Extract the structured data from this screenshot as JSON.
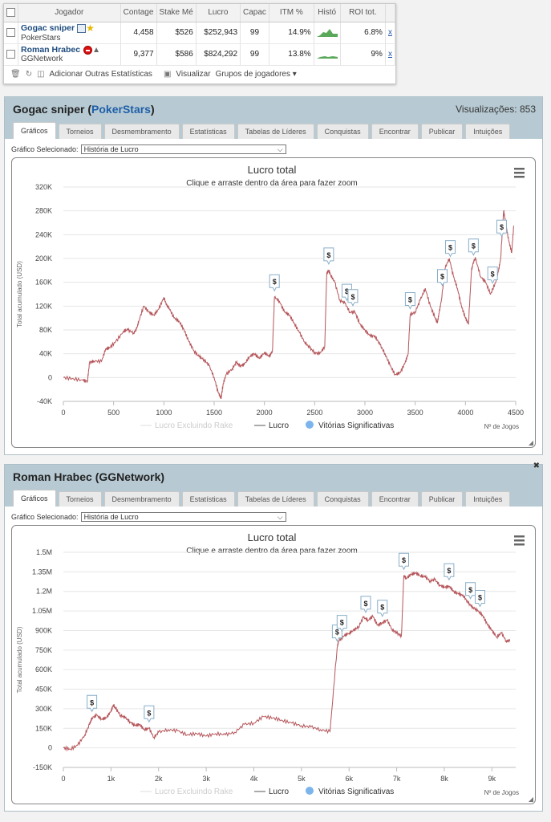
{
  "players_table": {
    "headers": [
      "Jogador",
      "Contage",
      "Stake Mé",
      "Lucro",
      "Capac",
      "ITM %",
      "Histó",
      "ROI tot."
    ],
    "rows": [
      {
        "name": "Gogac sniper",
        "network": "PokerStars",
        "count": "4,458",
        "stake": "$526",
        "profit": "$252,943",
        "cap": "99",
        "itm": "14.9%",
        "roi": "6.8%",
        "x": "x"
      },
      {
        "name": "Roman Hrabec",
        "network": "GGNetwork",
        "count": "9,377",
        "stake": "$586",
        "profit": "$824,292",
        "cap": "99",
        "itm": "13.8%",
        "roi": "9%",
        "x": "x"
      }
    ],
    "toolbar": {
      "add_stats": "Adicionar Outras Estatísticas",
      "view": "Visualizar",
      "groups": "Grupos de jogadores"
    }
  },
  "tabs": [
    "Gráficos",
    "Torneios",
    "Desmembramento",
    "Estatísticas",
    "Tabelas de Líderes",
    "Conquistas",
    "Encontrar",
    "Publicar",
    "Intuições"
  ],
  "selector": {
    "label": "Gráfico Selecionado:",
    "value": "História de Lucro"
  },
  "panels": [
    {
      "player": "Gogac sniper",
      "network": "PokerStars",
      "views_label": "Visualizações:",
      "views": "853"
    },
    {
      "player": "Roman Hrabec",
      "network": "GGNetwork"
    }
  ],
  "chart_common": {
    "title": "Lucro total",
    "subtitle": "Clique e arraste dentro da área para fazer zoom",
    "ylabel": "Total acumulado (USD)",
    "xlabel": "Nº de Jogos",
    "legend": [
      "Lucro Excluindo Rake",
      "Lucro",
      "Vitórias Significativas"
    ],
    "marker_symbol": "$"
  },
  "colors": {
    "profit_line": "#b5555a",
    "marker_dot": "#7cb5ec",
    "panel_bg": "#b7cad3",
    "link": "#1f5fa8"
  },
  "chart_data": [
    {
      "type": "line",
      "title": "Lucro total",
      "xlim": [
        0,
        4500
      ],
      "ylim": [
        -40000,
        320000
      ],
      "x_ticks": [
        0,
        500,
        1000,
        1500,
        2000,
        2500,
        3000,
        3500,
        4000,
        4500
      ],
      "x_tick_labels": [
        "0",
        "500",
        "1000",
        "1500",
        "2000",
        "2500",
        "3000",
        "3500",
        "4000",
        "4500"
      ],
      "y_ticks": [
        -40000,
        0,
        40000,
        80000,
        120000,
        160000,
        200000,
        240000,
        280000,
        320000
      ],
      "y_tick_labels": [
        "-40K",
        "0",
        "40K",
        "80K",
        "120K",
        "160K",
        "200K",
        "240K",
        "280K",
        "320K"
      ],
      "series": [
        {
          "name": "Lucro",
          "x": [
            0,
            100,
            200,
            240,
            260,
            300,
            380,
            420,
            460,
            520,
            600,
            640,
            700,
            730,
            750,
            800,
            850,
            900,
            950,
            1000,
            1030,
            1050,
            1100,
            1150,
            1200,
            1250,
            1300,
            1350,
            1400,
            1450,
            1500,
            1540,
            1570,
            1590,
            1620,
            1680,
            1720,
            1760,
            1800,
            1850,
            1900,
            1950,
            2000,
            2050,
            2080,
            2100,
            2150,
            2200,
            2250,
            2300,
            2350,
            2400,
            2450,
            2500,
            2550,
            2600,
            2620,
            2640,
            2660,
            2700,
            2750,
            2800,
            2850,
            2900,
            2950,
            3000,
            3050,
            3100,
            3150,
            3200,
            3250,
            3300,
            3350,
            3400,
            3430,
            3450,
            3500,
            3550,
            3600,
            3650,
            3700,
            3720,
            3740,
            3760,
            3800,
            3840,
            3880,
            3920,
            3960,
            4000,
            4030,
            4060,
            4080,
            4100,
            4150,
            4200,
            4250,
            4300,
            4330,
            4350,
            4380,
            4400,
            4430,
            4460,
            4480
          ],
          "y": [
            0,
            -2000,
            -5000,
            -6000,
            25000,
            28000,
            27000,
            48000,
            50000,
            60000,
            78000,
            80000,
            75000,
            82000,
            95000,
            120000,
            110000,
            105000,
            115000,
            135000,
            120000,
            118000,
            100000,
            95000,
            80000,
            60000,
            45000,
            35000,
            30000,
            20000,
            0,
            -25000,
            -35000,
            -10000,
            5000,
            15000,
            25000,
            20000,
            22000,
            35000,
            40000,
            32000,
            42000,
            35000,
            45000,
            135000,
            128000,
            110000,
            105000,
            90000,
            75000,
            60000,
            50000,
            42000,
            40000,
            52000,
            175000,
            180000,
            172000,
            160000,
            130000,
            125000,
            110000,
            110000,
            90000,
            80000,
            70000,
            70000,
            55000,
            40000,
            20000,
            5000,
            8000,
            25000,
            40000,
            105000,
            110000,
            130000,
            150000,
            120000,
            100000,
            92000,
            110000,
            130000,
            185000,
            200000,
            170000,
            150000,
            120000,
            100000,
            90000,
            180000,
            195000,
            200000,
            170000,
            160000,
            140000,
            160000,
            180000,
            200000,
            280000,
            260000,
            230000,
            210000,
            255000
          ]
        }
      ],
      "markers_x": [
        2100,
        2640,
        2820,
        2880,
        3450,
        3770,
        3850,
        4080,
        4270,
        4360
      ]
    },
    {
      "type": "line",
      "title": "Lucro total",
      "xlim": [
        0,
        9500
      ],
      "ylim": [
        -150000,
        1500000
      ],
      "x_ticks": [
        0,
        1000,
        2000,
        3000,
        4000,
        5000,
        6000,
        7000,
        8000,
        9000
      ],
      "x_tick_labels": [
        "0",
        "1k",
        "2k",
        "3k",
        "4k",
        "5k",
        "6k",
        "7k",
        "8k",
        "9k"
      ],
      "y_ticks": [
        -150000,
        0,
        150000,
        300000,
        450000,
        600000,
        750000,
        900000,
        1050000,
        1200000,
        1350000,
        1500000
      ],
      "y_tick_labels": [
        "-150K",
        "0",
        "150K",
        "300K",
        "450K",
        "600K",
        "750K",
        "900K",
        "1.05M",
        "1.2M",
        "1.35M",
        "1.5M"
      ],
      "series": [
        {
          "name": "Lucro",
          "x": [
            0,
            150,
            300,
            450,
            550,
            600,
            700,
            800,
            900,
            1000,
            1050,
            1100,
            1200,
            1300,
            1400,
            1500,
            1600,
            1700,
            1800,
            1900,
            2000,
            2200,
            2400,
            2600,
            2800,
            3000,
            3200,
            3400,
            3600,
            3800,
            4000,
            4200,
            4400,
            4600,
            4800,
            5000,
            5200,
            5400,
            5600,
            5750,
            5780,
            5900,
            6000,
            6100,
            6200,
            6300,
            6400,
            6500,
            6600,
            6700,
            6800,
            6900,
            7000,
            7100,
            7150,
            7200,
            7300,
            7400,
            7500,
            7600,
            7700,
            7800,
            7900,
            8000,
            8100,
            8200,
            8300,
            8400,
            8500,
            8600,
            8700,
            8800,
            8900,
            9000,
            9100,
            9200,
            9300,
            9377
          ],
          "y": [
            0,
            -10000,
            20000,
            100000,
            180000,
            230000,
            250000,
            220000,
            230000,
            280000,
            330000,
            300000,
            250000,
            230000,
            200000,
            170000,
            180000,
            140000,
            150000,
            80000,
            120000,
            140000,
            130000,
            100000,
            110000,
            90000,
            110000,
            100000,
            120000,
            180000,
            190000,
            240000,
            230000,
            210000,
            190000,
            170000,
            160000,
            140000,
            125000,
            770000,
            820000,
            860000,
            880000,
            900000,
            930000,
            1000000,
            980000,
            1010000,
            940000,
            960000,
            980000,
            910000,
            880000,
            860000,
            1320000,
            1300000,
            1330000,
            1340000,
            1320000,
            1310000,
            1280000,
            1290000,
            1250000,
            1230000,
            1240000,
            1200000,
            1180000,
            1170000,
            1110000,
            1080000,
            1050000,
            1020000,
            950000,
            900000,
            850000,
            880000,
            820000,
            820000
          ]
        }
      ],
      "markers_x": [
        600,
        1800,
        5750,
        5850,
        6350,
        6700,
        7150,
        8100,
        8550,
        8750
      ]
    }
  ]
}
